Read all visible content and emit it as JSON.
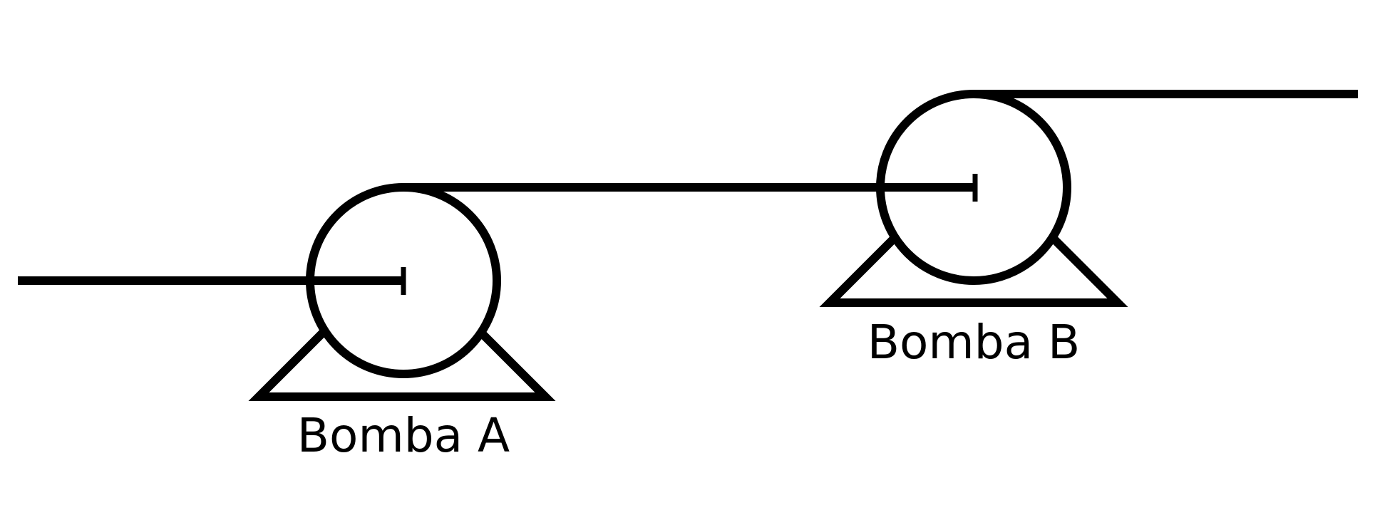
{
  "diagram": {
    "pumps": [
      {
        "id": "A",
        "label": "Bomba A"
      },
      {
        "id": "B",
        "label": "Bomba B"
      }
    ],
    "colors": {
      "line": "#000000",
      "background": "#ffffff"
    }
  }
}
